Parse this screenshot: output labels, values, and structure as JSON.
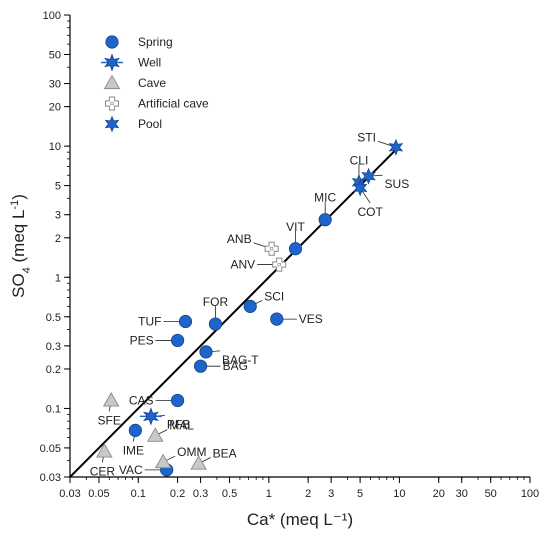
{
  "chart_data": {
    "type": "scatter",
    "xscale": "log",
    "yscale": "log",
    "xlim": [
      0.03,
      100
    ],
    "ylim": [
      0.03,
      100
    ],
    "grid": false,
    "legend_position": "top-left",
    "xlabel": "Ca* (meq L⁻¹)",
    "ylabel_parts": [
      "SO",
      "4",
      " (meq L",
      "-1",
      ")"
    ],
    "xticks": [
      {
        "v": 0.03,
        "label": "0.03"
      },
      {
        "v": 0.05,
        "label": "0.05"
      },
      {
        "v": 0.1,
        "label": "0.1"
      },
      {
        "v": 0.2,
        "label": "0.2"
      },
      {
        "v": 0.3,
        "label": "0.3"
      },
      {
        "v": 0.5,
        "label": "0.5"
      },
      {
        "v": 1,
        "label": "1"
      },
      {
        "v": 2,
        "label": "2"
      },
      {
        "v": 3,
        "label": "3"
      },
      {
        "v": 5,
        "label": "5"
      },
      {
        "v": 10,
        "label": "10"
      },
      {
        "v": 20,
        "label": "20"
      },
      {
        "v": 30,
        "label": "30"
      },
      {
        "v": 50,
        "label": "50"
      },
      {
        "v": 100,
        "label": "100"
      }
    ],
    "yticks": [
      {
        "v": 0.03,
        "label": "0.03"
      },
      {
        "v": 0.05,
        "label": "0.05"
      },
      {
        "v": 0.1,
        "label": "0.1"
      },
      {
        "v": 0.2,
        "label": "0.2"
      },
      {
        "v": 0.3,
        "label": "0.3"
      },
      {
        "v": 0.5,
        "label": "0.5"
      },
      {
        "v": 1,
        "label": "1"
      },
      {
        "v": 2,
        "label": "2"
      },
      {
        "v": 3,
        "label": "3"
      },
      {
        "v": 5,
        "label": "5"
      },
      {
        "v": 10,
        "label": "10"
      },
      {
        "v": 20,
        "label": "20"
      },
      {
        "v": 30,
        "label": "30"
      },
      {
        "v": 50,
        "label": "50"
      },
      {
        "v": 100,
        "label": "100"
      }
    ],
    "reference_line": {
      "type": "1:1",
      "from": [
        0.03,
        0.03
      ],
      "to": [
        10,
        10
      ]
    },
    "legend": [
      {
        "name": "Spring",
        "marker": "circle"
      },
      {
        "name": "Well",
        "marker": "star-line"
      },
      {
        "name": "Cave",
        "marker": "triangle"
      },
      {
        "name": "Artificial cave",
        "marker": "cross-square"
      },
      {
        "name": "Pool",
        "marker": "star"
      }
    ],
    "series": [
      {
        "name": "Spring",
        "marker": "circle",
        "points": [
          {
            "label": "TUF",
            "x": 0.23,
            "y": 0.46,
            "label_pos": "left"
          },
          {
            "label": "FOR",
            "x": 0.39,
            "y": 0.44,
            "label_pos": "above"
          },
          {
            "label": "SCI",
            "x": 0.72,
            "y": 0.6,
            "label_pos": "right-up"
          },
          {
            "label": "VES",
            "x": 1.15,
            "y": 0.48,
            "label_pos": "right"
          },
          {
            "label": "PES",
            "x": 0.2,
            "y": 0.33,
            "label_pos": "left"
          },
          {
            "label": "BAG-T",
            "x": 0.33,
            "y": 0.27,
            "label_pos": "right-down"
          },
          {
            "label": "BAG",
            "x": 0.3,
            "y": 0.21,
            "label_pos": "right"
          },
          {
            "label": "VIT",
            "x": 1.6,
            "y": 1.65,
            "label_pos": "above"
          },
          {
            "label": "MIC",
            "x": 2.7,
            "y": 2.75,
            "label_pos": "above"
          },
          {
            "label": "CAS",
            "x": 0.2,
            "y": 0.115,
            "label_pos": "left"
          },
          {
            "label": "IME",
            "x": 0.095,
            "y": 0.068,
            "label_pos": "below"
          },
          {
            "label": "VAC",
            "x": 0.165,
            "y": 0.034,
            "label_pos": "left"
          }
        ]
      },
      {
        "name": "Well",
        "marker": "star-line",
        "points": [
          {
            "label": "PFB",
            "x": 0.125,
            "y": 0.087,
            "label_pos": "right-down"
          }
        ]
      },
      {
        "name": "Cave",
        "marker": "triangle",
        "points": [
          {
            "label": "SFE",
            "x": 0.062,
            "y": 0.115,
            "label_pos": "below"
          },
          {
            "label": "MAL",
            "x": 0.135,
            "y": 0.062,
            "label_pos": "right-up"
          },
          {
            "label": "OMM",
            "x": 0.155,
            "y": 0.039,
            "label_pos": "right-up"
          },
          {
            "label": "CER",
            "x": 0.055,
            "y": 0.047,
            "label_pos": "below"
          },
          {
            "label": "BEA",
            "x": 0.29,
            "y": 0.038,
            "label_pos": "right-up"
          }
        ]
      },
      {
        "name": "Artificial cave",
        "marker": "cross-square",
        "points": [
          {
            "label": "ANB",
            "x": 1.05,
            "y": 1.65,
            "label_pos": "left-up"
          },
          {
            "label": "ANV",
            "x": 1.2,
            "y": 1.25,
            "label_pos": "left"
          }
        ]
      },
      {
        "name": "Pool",
        "marker": "star",
        "points": [
          {
            "label": "STI",
            "x": 9.4,
            "y": 9.8,
            "label_pos": "left-up"
          },
          {
            "label": "CLI",
            "x": 4.9,
            "y": 5.3,
            "label_pos": "above"
          },
          {
            "label": "SUS",
            "x": 5.8,
            "y": 5.9,
            "label_pos": "right-down"
          },
          {
            "label": "COT",
            "x": 5.0,
            "y": 4.8,
            "label_pos": "below-right"
          }
        ]
      }
    ]
  },
  "colors": {
    "spring_fill": "#1f64c8",
    "marker_edge": "#14438e",
    "cave_fill": "#c8c8c8",
    "cave_edge": "#8a8a8a",
    "artificial_edge": "#8a8a8a",
    "axis": "#000000",
    "leader": "#222222"
  }
}
